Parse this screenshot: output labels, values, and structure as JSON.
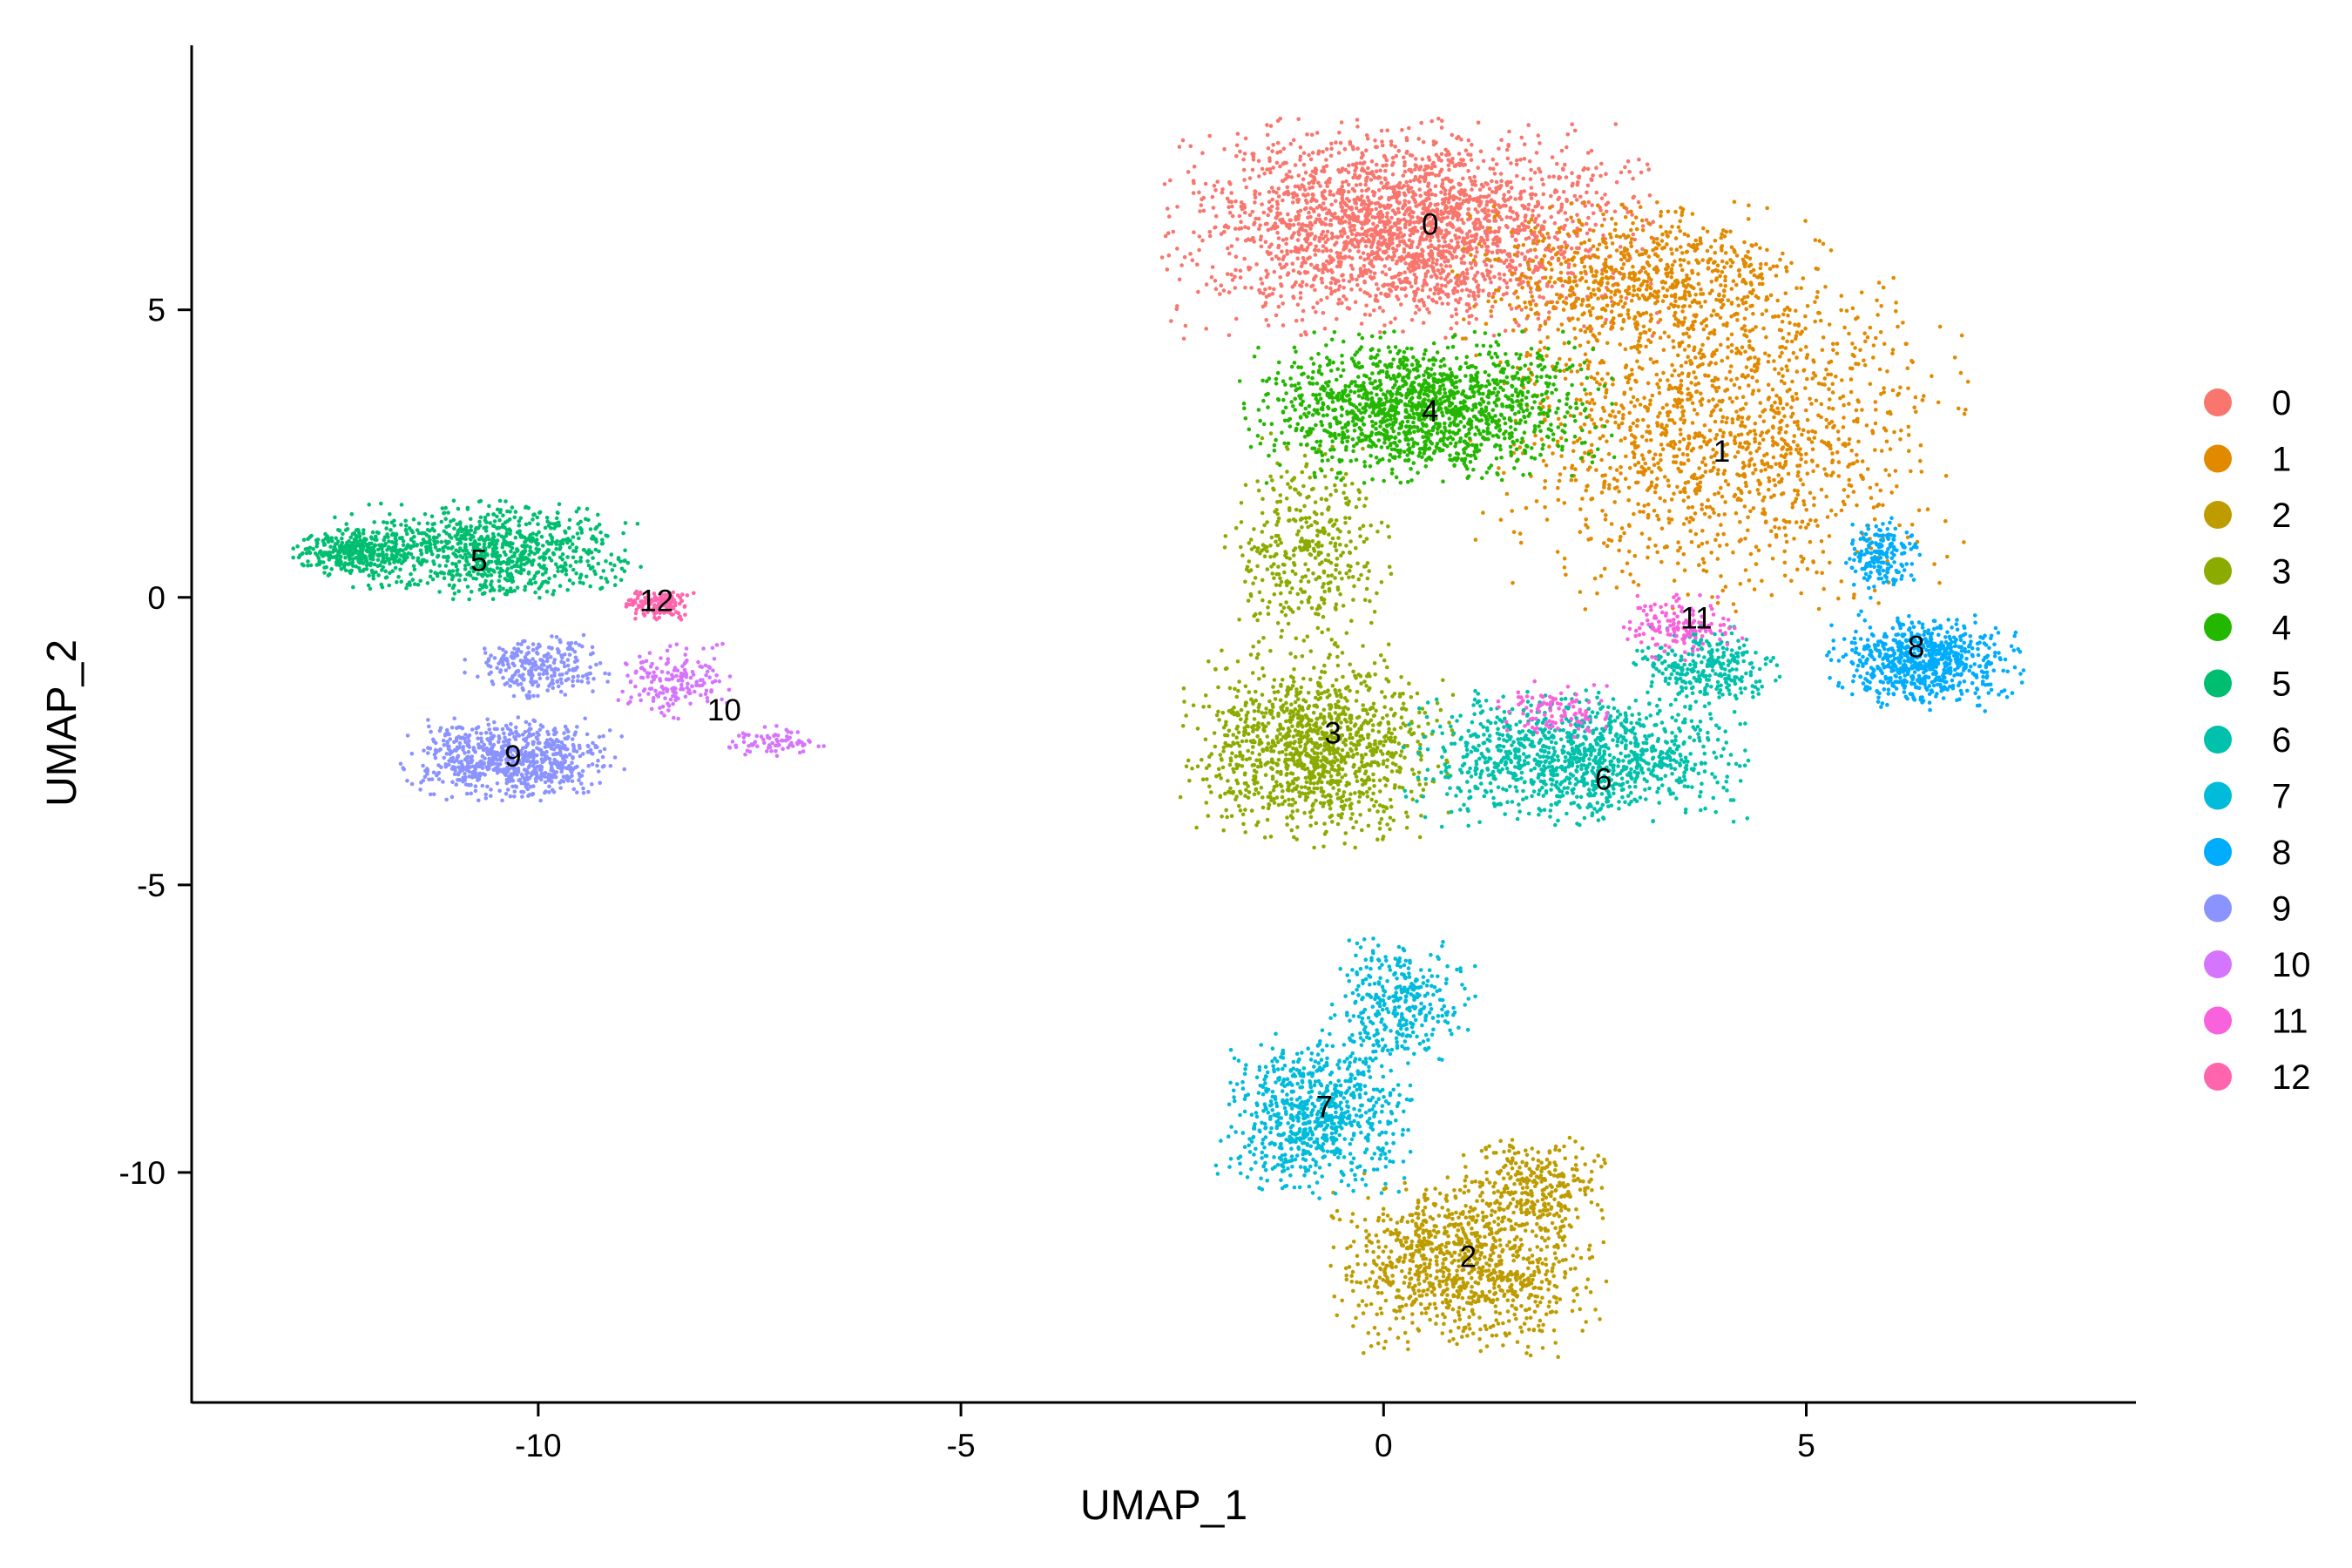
{
  "chart_data": {
    "type": "scatter",
    "title": "",
    "xlabel": "UMAP_1",
    "ylabel": "UMAP_2",
    "xlim": [
      -14.1,
      8.9
    ],
    "ylim": [
      -14.0,
      9.6
    ],
    "xticks": [
      -10,
      -5,
      0,
      5
    ],
    "yticks": [
      5,
      0,
      -5,
      -10
    ],
    "grid": false,
    "legend_position": "right",
    "series": [
      {
        "name": "0",
        "color": "#F8766D",
        "label_at": [
          0.55,
          6.45
        ],
        "n": 2400,
        "blobs": [
          {
            "cx": 0.3,
            "cy": 6.4,
            "sx": 2.0,
            "sy": 1.3,
            "w": 1.0
          }
        ]
      },
      {
        "name": "1",
        "color": "#E18A00",
        "label_at": [
          4.0,
          2.5
        ],
        "n": 2200,
        "blobs": [
          {
            "cx": 4.0,
            "cy": 3.0,
            "sx": 2.0,
            "sy": 2.2,
            "w": 0.7
          },
          {
            "cx": 3.0,
            "cy": 5.6,
            "sx": 1.5,
            "sy": 0.9,
            "w": 0.3
          }
        ]
      },
      {
        "name": "2",
        "color": "#BE9C00",
        "label_at": [
          1.0,
          -11.5
        ],
        "n": 1300,
        "blobs": [
          {
            "cx": 1.0,
            "cy": -11.6,
            "sx": 1.1,
            "sy": 1.1,
            "w": 0.8
          },
          {
            "cx": 1.8,
            "cy": -10.2,
            "sx": 0.6,
            "sy": 0.6,
            "w": 0.2
          }
        ]
      },
      {
        "name": "3",
        "color": "#8CAB00",
        "label_at": [
          -0.6,
          -2.4
        ],
        "n": 1600,
        "blobs": [
          {
            "cx": -0.8,
            "cy": -2.6,
            "sx": 1.1,
            "sy": 1.2,
            "w": 0.75
          },
          {
            "cx": -0.9,
            "cy": 0.8,
            "sx": 0.7,
            "sy": 1.4,
            "w": 0.25
          }
        ]
      },
      {
        "name": "4",
        "color": "#24B700",
        "label_at": [
          0.55,
          3.2
        ],
        "n": 1500,
        "blobs": [
          {
            "cx": 0.5,
            "cy": 3.3,
            "sx": 1.5,
            "sy": 0.9,
            "w": 1.0
          }
        ]
      },
      {
        "name": "5",
        "color": "#00BE70",
        "label_at": [
          -10.7,
          0.6
        ],
        "n": 1200,
        "blobs": [
          {
            "cx": -10.6,
            "cy": 0.8,
            "sx": 1.3,
            "sy": 0.6,
            "w": 0.75
          },
          {
            "cx": -12.2,
            "cy": 0.8,
            "sx": 0.5,
            "sy": 0.3,
            "w": 0.25
          }
        ]
      },
      {
        "name": "6",
        "color": "#00C1AB",
        "label_at": [
          2.6,
          -3.2
        ],
        "n": 1400,
        "blobs": [
          {
            "cx": 2.3,
            "cy": -2.8,
            "sx": 1.4,
            "sy": 0.8,
            "w": 0.8
          },
          {
            "cx": 3.8,
            "cy": -1.2,
            "sx": 0.6,
            "sy": 0.5,
            "w": 0.2
          }
        ]
      },
      {
        "name": "7",
        "color": "#00BBDA",
        "label_at": [
          -0.7,
          -8.9
        ],
        "n": 1100,
        "blobs": [
          {
            "cx": -0.8,
            "cy": -9.0,
            "sx": 0.8,
            "sy": 1.0,
            "w": 0.7
          },
          {
            "cx": 0.2,
            "cy": -7.0,
            "sx": 0.6,
            "sy": 0.8,
            "w": 0.3
          }
        ]
      },
      {
        "name": "8",
        "color": "#00ACFC",
        "label_at": [
          6.3,
          -0.9
        ],
        "n": 900,
        "blobs": [
          {
            "cx": 6.4,
            "cy": -1.1,
            "sx": 0.8,
            "sy": 0.6,
            "w": 0.8
          },
          {
            "cx": 5.9,
            "cy": 0.7,
            "sx": 0.3,
            "sy": 0.5,
            "w": 0.2
          }
        ]
      },
      {
        "name": "9",
        "color": "#8B93FF",
        "label_at": [
          -10.3,
          -2.8
        ],
        "n": 1000,
        "blobs": [
          {
            "cx": -10.3,
            "cy": -2.8,
            "sx": 0.9,
            "sy": 0.5,
            "w": 0.75
          },
          {
            "cx": -10.0,
            "cy": -1.2,
            "sx": 0.6,
            "sy": 0.4,
            "w": 0.25
          }
        ]
      },
      {
        "name": "10",
        "color": "#D575FE",
        "label_at": [
          -7.8,
          -2.0
        ],
        "n": 250,
        "blobs": [
          {
            "cx": -8.4,
            "cy": -1.4,
            "sx": 0.5,
            "sy": 0.5,
            "w": 0.7
          },
          {
            "cx": -7.2,
            "cy": -2.5,
            "sx": 0.4,
            "sy": 0.2,
            "w": 0.3
          }
        ]
      },
      {
        "name": "11",
        "color": "#F962DD",
        "label_at": [
          3.7,
          -0.4
        ],
        "n": 250,
        "blobs": [
          {
            "cx": 3.5,
            "cy": -0.5,
            "sx": 0.5,
            "sy": 0.4,
            "w": 0.6
          },
          {
            "cx": 2.0,
            "cy": -2.0,
            "sx": 0.5,
            "sy": 0.4,
            "w": 0.4
          }
        ]
      },
      {
        "name": "12",
        "color": "#FF65AC",
        "label_at": [
          -8.6,
          -0.1
        ],
        "n": 150,
        "blobs": [
          {
            "cx": -8.6,
            "cy": -0.1,
            "sx": 0.3,
            "sy": 0.2,
            "w": 1.0
          }
        ]
      }
    ]
  }
}
